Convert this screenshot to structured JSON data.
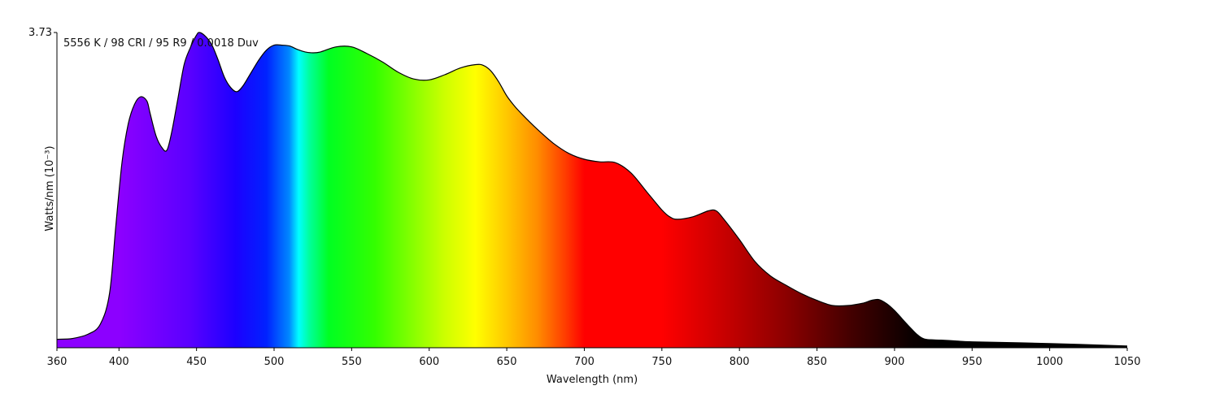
{
  "chart_data": {
    "type": "area",
    "title": "",
    "annotation": "5556 K / 98 CRI / 95 R9 / 0.0018 Duv",
    "xlabel": "Wavelength (nm)",
    "ylabel": "Watts/nm (10⁻³)",
    "xlim": [
      360,
      1050
    ],
    "ylim": [
      0,
      3.73
    ],
    "x_ticks": [
      360,
      400,
      450,
      500,
      550,
      600,
      650,
      700,
      750,
      800,
      850,
      900,
      950,
      1000,
      1050
    ],
    "y_tick_labels": [
      "3.73"
    ],
    "grid": false,
    "legend": "none",
    "fill": "visible-spectrum gradient (violet 380–450, blue 450–480, cyan ~485, green 500–550, yellow ~575, orange ~610, red 640–720, dark red → black 720–860)",
    "outline_color": "#000000",
    "series": [
      {
        "x": [
          360,
          370,
          380,
          388,
          394,
          398,
          402,
          406,
          410,
          414,
          418,
          420,
          424,
          428,
          431,
          434,
          438,
          442,
          446,
          450,
          452,
          456,
          460,
          464,
          468,
          472,
          476,
          480,
          485,
          490,
          495,
          500,
          505,
          510,
          515,
          520,
          525,
          530,
          540,
          550,
          560,
          570,
          580,
          590,
          600,
          610,
          620,
          630,
          635,
          640,
          645,
          650,
          655,
          660,
          670,
          680,
          690,
          700,
          710,
          720,
          730,
          740,
          750,
          755,
          760,
          770,
          780,
          785,
          790,
          800,
          810,
          820,
          830,
          840,
          850,
          860,
          870,
          880,
          885,
          890,
          895,
          900,
          905,
          910,
          915,
          920,
          930,
          940,
          950,
          1000,
          1050
        ],
        "y": [
          0.1,
          0.11,
          0.16,
          0.28,
          0.65,
          1.45,
          2.2,
          2.65,
          2.88,
          2.97,
          2.92,
          2.78,
          2.5,
          2.36,
          2.34,
          2.55,
          2.95,
          3.35,
          3.55,
          3.7,
          3.73,
          3.68,
          3.58,
          3.4,
          3.2,
          3.08,
          3.03,
          3.1,
          3.25,
          3.4,
          3.52,
          3.58,
          3.58,
          3.57,
          3.53,
          3.5,
          3.49,
          3.5,
          3.56,
          3.56,
          3.48,
          3.38,
          3.26,
          3.18,
          3.17,
          3.23,
          3.31,
          3.35,
          3.34,
          3.27,
          3.14,
          2.98,
          2.86,
          2.76,
          2.58,
          2.42,
          2.3,
          2.23,
          2.2,
          2.19,
          2.07,
          1.85,
          1.63,
          1.55,
          1.52,
          1.55,
          1.62,
          1.62,
          1.52,
          1.28,
          1.02,
          0.85,
          0.74,
          0.64,
          0.56,
          0.5,
          0.5,
          0.53,
          0.56,
          0.57,
          0.52,
          0.44,
          0.34,
          0.24,
          0.15,
          0.1,
          0.09,
          0.08,
          0.07,
          0.05,
          0.02
        ]
      }
    ]
  }
}
